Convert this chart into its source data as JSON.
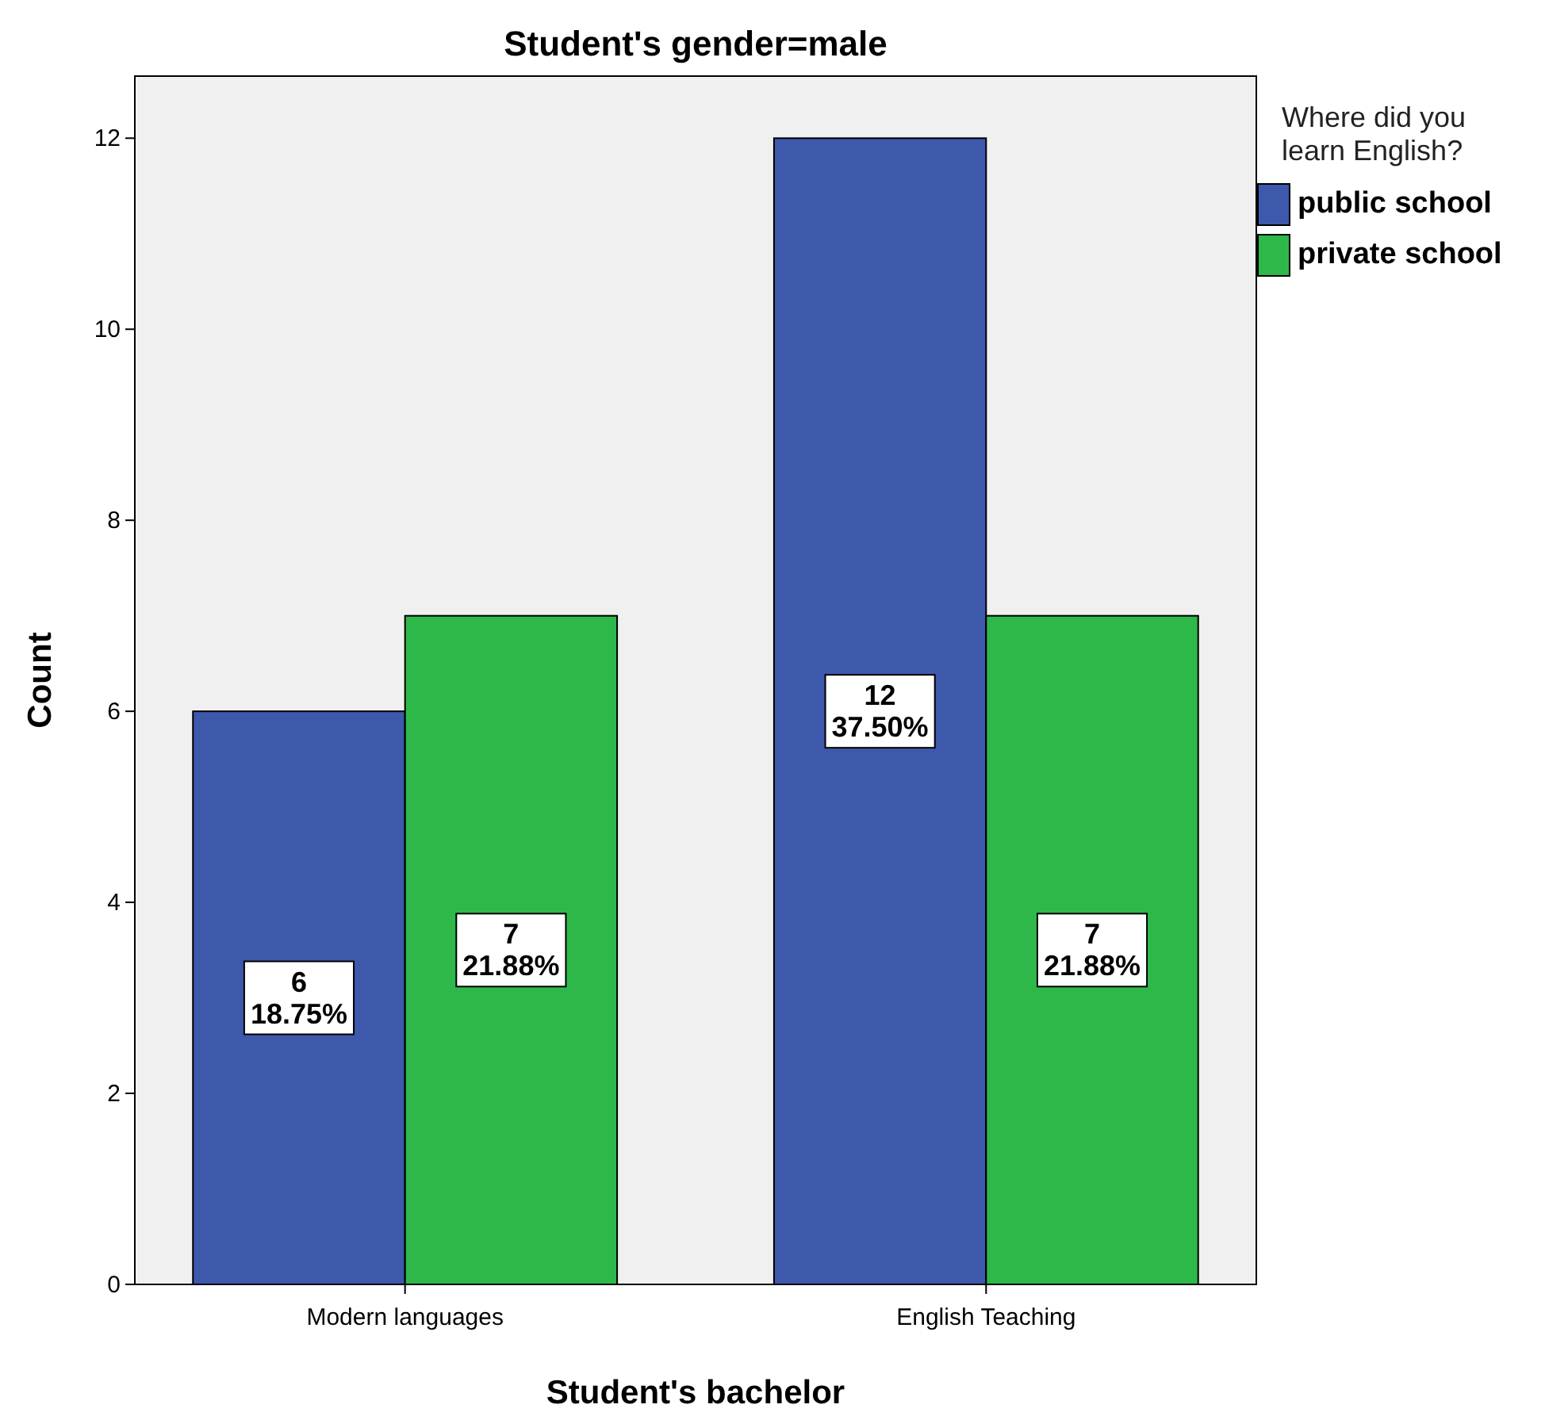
{
  "chart_data": {
    "type": "bar",
    "title": "Student's gender=male",
    "xlabel": "Student's bachelor",
    "ylabel": "Count",
    "legend_title": "Where did you learn English?",
    "categories": [
      "Modern languages",
      "English Teaching"
    ],
    "series": [
      {
        "name": "public school",
        "color": "#3e58ac",
        "values": [
          6,
          12
        ],
        "value_labels": [
          "6\n18.75%",
          "12\n37.50%"
        ]
      },
      {
        "name": "private school",
        "color": "#2eb84a",
        "values": [
          7,
          7
        ],
        "value_labels": [
          "7\n21.88%",
          "7\n21.88%"
        ]
      }
    ],
    "ylim": [
      0,
      12.65
    ],
    "yticks": [
      0,
      2,
      4,
      6,
      8,
      10,
      12
    ],
    "grid": false,
    "legend": "top right"
  }
}
